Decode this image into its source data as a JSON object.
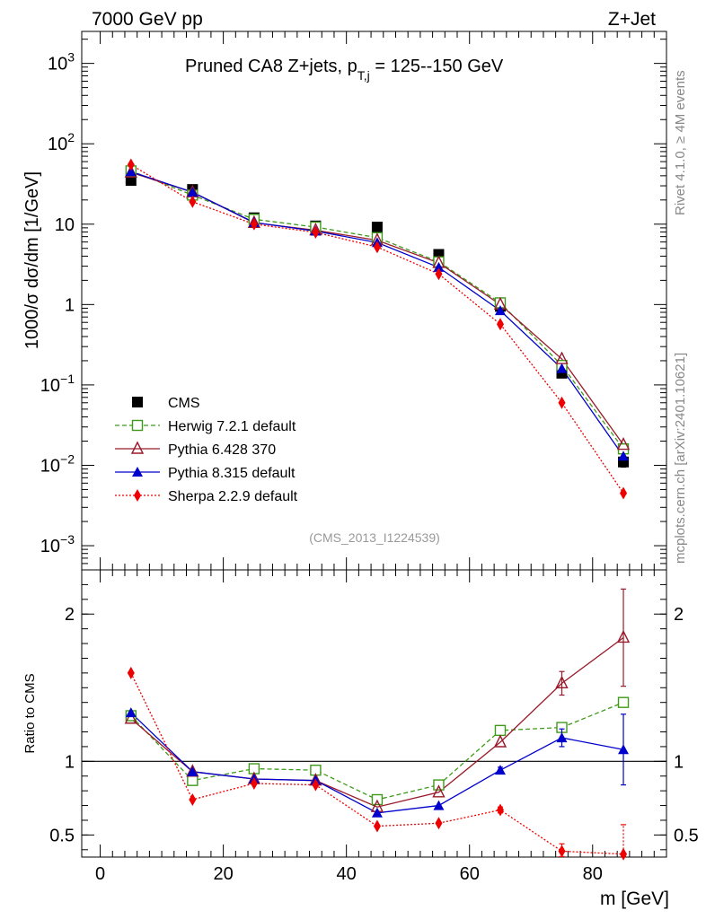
{
  "header": {
    "left": "7000 GeV pp",
    "right": "Z+Jet"
  },
  "side_labels": {
    "rivet": "Rivet 4.1.0, ≥ 4M events",
    "mcplots": "mcplots.cern.ch [arXiv:2401.10621]"
  },
  "chart_data": [
    {
      "type": "line",
      "scale": "log",
      "title": "Pruned CA8 Z+jets, p_T,j = 125--150 GeV",
      "title_main": "Pruned CA8 Z+jets, p",
      "title_sub": "T,j",
      "title_tail": " = 125--150 GeV",
      "ylabel": "1000/σ  dσ/dm [1/GeV]",
      "watermark": "(CMS_2013_I1224539)",
      "xlim": [
        -3,
        92
      ],
      "ylim": [
        0.0005,
        2500
      ],
      "y_tick_labels": [
        {
          "value": 0.001,
          "base": "10",
          "exp": "−3"
        },
        {
          "value": 0.01,
          "base": "10",
          "exp": "−2"
        },
        {
          "value": 0.1,
          "base": "10",
          "exp": "−1"
        },
        {
          "value": 1,
          "label": "1"
        },
        {
          "value": 10,
          "label": "10"
        },
        {
          "value": 100,
          "base": "10",
          "exp": "2"
        },
        {
          "value": 1000,
          "base": "10",
          "exp": "3"
        }
      ],
      "x": [
        5,
        15,
        25,
        35,
        45,
        55,
        65,
        75,
        85
      ],
      "series": [
        {
          "name": "CMS",
          "color": "#000000",
          "marker": "square-filled",
          "line": "none",
          "values": [
            35,
            27,
            12,
            9.5,
            9.2,
            4.2,
            0.95,
            0.14,
            0.011
          ],
          "errors": [
            0,
            0,
            0,
            0,
            0,
            0,
            0,
            0,
            0.0015
          ]
        },
        {
          "name": "Herwig 7.2.1 default",
          "color": "#3f9a1a",
          "marker": "square-open",
          "line": "dashed",
          "values": [
            46,
            23,
            11.5,
            9.2,
            6.8,
            3.4,
            1.05,
            0.175,
            0.016
          ]
        },
        {
          "name": "Pythia 6.428 370",
          "color": "#991a2a",
          "marker": "triangle-open",
          "line": "solid",
          "values": [
            44,
            25,
            10.4,
            8.4,
            6.3,
            3.3,
            1.0,
            0.21,
            0.018
          ]
        },
        {
          "name": "Pythia 8.315 default",
          "color": "#0000cc",
          "marker": "triangle-filled",
          "line": "solid",
          "values": [
            45,
            25,
            10.5,
            8.2,
            5.9,
            2.9,
            0.84,
            0.16,
            0.013
          ]
        },
        {
          "name": "Sherpa 2.2.9 default",
          "color": "#ee0000",
          "marker": "diamond-filled",
          "line": "dotted",
          "values": [
            55,
            19,
            10.0,
            7.9,
            5.2,
            2.4,
            0.57,
            0.06,
            0.0045
          ]
        }
      ]
    },
    {
      "type": "line",
      "ylabel": "Ratio to CMS",
      "xlabel": "m [GeV]",
      "xlim": [
        -3,
        92
      ],
      "ylim": [
        0.35,
        2.3
      ],
      "x_tick_labels": [
        "0",
        "20",
        "40",
        "60",
        "80"
      ],
      "x_ticks": [
        0,
        20,
        40,
        60,
        80
      ],
      "y_tick_labels": [
        "0.5",
        "1",
        "2"
      ],
      "y_ticks": [
        0.5,
        1,
        2
      ],
      "reference": 1,
      "x": [
        5,
        15,
        25,
        35,
        45,
        55,
        65,
        75,
        85
      ],
      "series": [
        {
          "name": "Herwig 7.2.1 default",
          "color": "#3f9a1a",
          "marker": "square-open",
          "line": "dashed",
          "values": [
            1.31,
            0.87,
            0.95,
            0.94,
            0.74,
            0.84,
            1.21,
            1.23,
            1.4
          ]
        },
        {
          "name": "Pythia 6.428 370",
          "color": "#991a2a",
          "marker": "triangle-open",
          "line": "solid",
          "values": [
            1.29,
            0.93,
            0.88,
            0.87,
            0.69,
            0.79,
            1.13,
            1.53,
            1.84
          ],
          "errors": [
            0,
            0,
            0,
            0,
            0,
            0,
            0,
            0.08,
            0.33
          ]
        },
        {
          "name": "Pythia 8.315 default",
          "color": "#0000cc",
          "marker": "triangle-filled",
          "line": "solid",
          "values": [
            1.33,
            0.93,
            0.88,
            0.87,
            0.65,
            0.7,
            0.94,
            1.16,
            1.08
          ],
          "errors": [
            0,
            0,
            0,
            0,
            0,
            0,
            0.02,
            0.06,
            0.24
          ]
        },
        {
          "name": "Sherpa 2.2.9 default",
          "color": "#ee0000",
          "marker": "diamond-filled",
          "line": "dotted",
          "values": [
            1.6,
            0.74,
            0.85,
            0.84,
            0.56,
            0.58,
            0.67,
            0.39,
            0.37
          ],
          "errors": [
            0,
            0,
            0,
            0,
            0,
            0,
            0.02,
            0.05,
            0.2
          ]
        }
      ]
    }
  ]
}
